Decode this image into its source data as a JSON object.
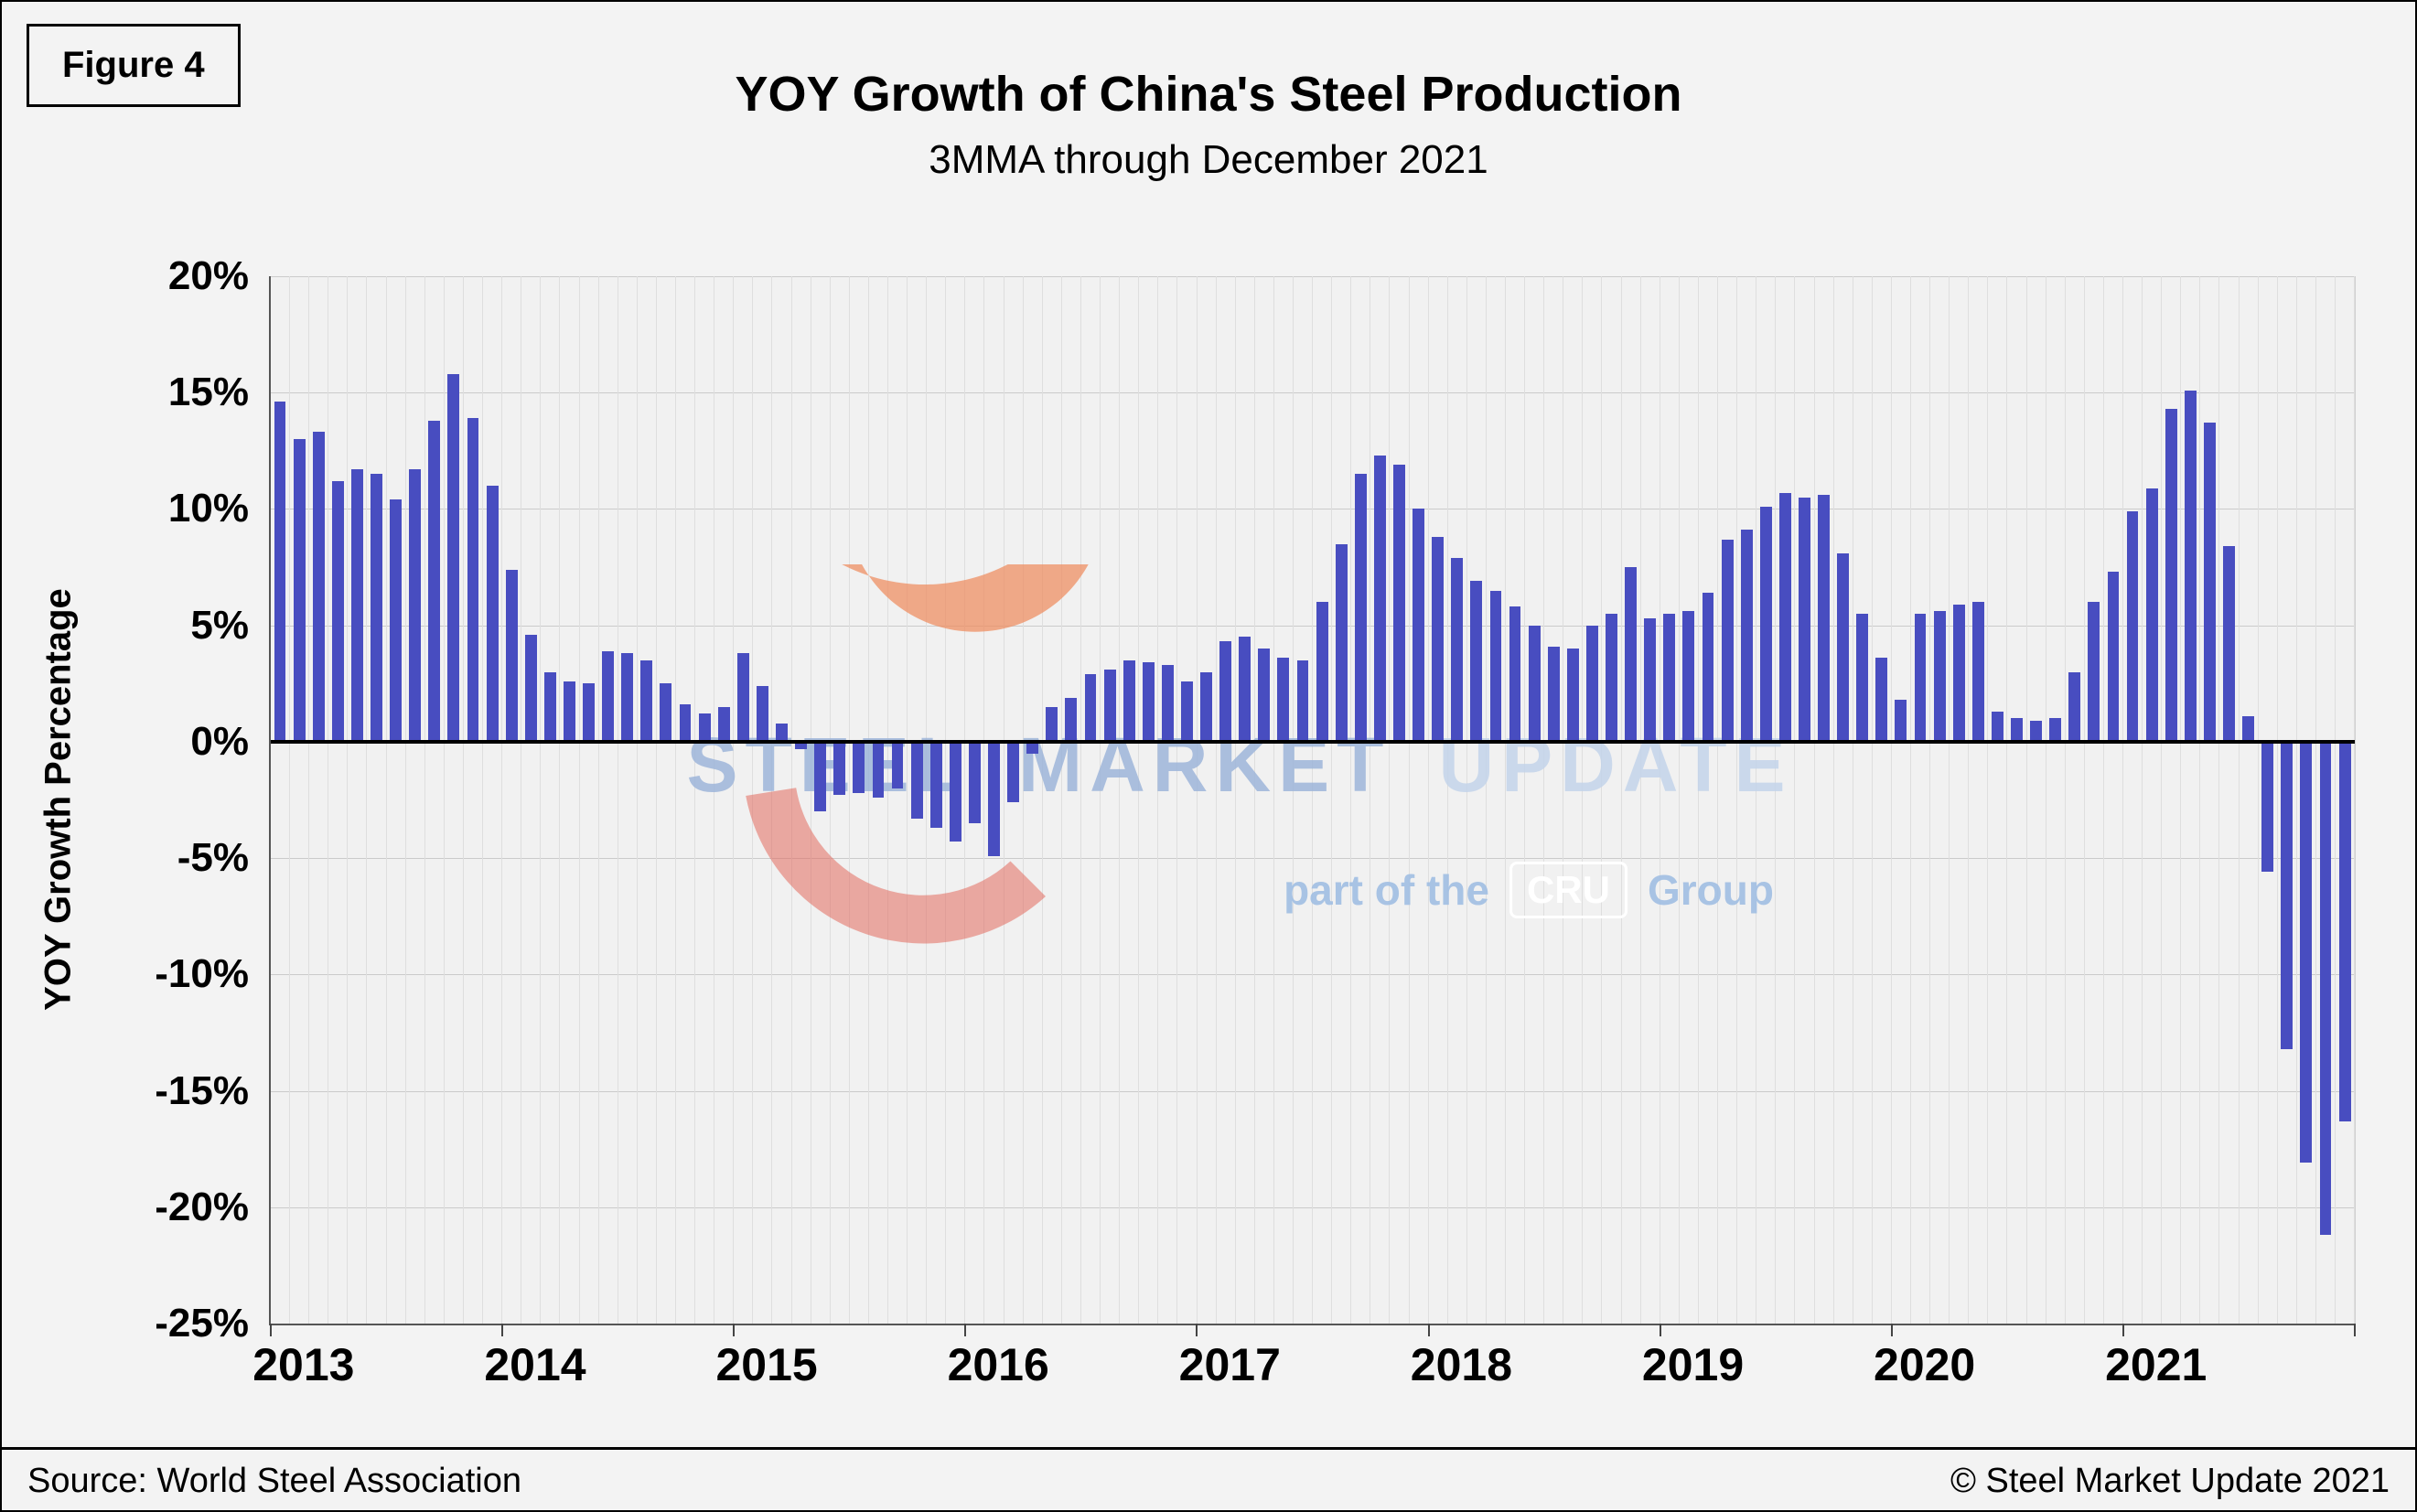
{
  "figure_label": "Figure 4",
  "footer": {
    "source": "Source: World Steel Association",
    "copyright": "© Steel Market Update 2021"
  },
  "watermark": {
    "word1": "STEEL",
    "word2": "MARKET",
    "word3": "UPDATE",
    "part_prefix": "part of the",
    "cru": "CRU",
    "group": "Group"
  },
  "colors": {
    "bar": "#484DC0",
    "zero_line": "#000000",
    "gridline": "#cbcbcb",
    "plot_bg": "#f1f1f1",
    "page_bg": "#f3f3f3",
    "watermark_text": "#98b1d8",
    "watermark_crescent": "#EF8C5F",
    "cru_box_bg": "#7FA6DC"
  },
  "chart_data": {
    "type": "bar",
    "title": "YOY Growth of China's Steel Production",
    "subtitle": "3MMA through December 2021",
    "ylabel": "YOY Growth Percentage",
    "unit": "percent",
    "ylim": [
      -25,
      20
    ],
    "yticks": [
      20,
      15,
      10,
      5,
      0,
      -5,
      -10,
      -15,
      -20,
      -25
    ],
    "ytick_labels": [
      "20%",
      "15%",
      "10%",
      "5%",
      "0%",
      "-5%",
      "-10%",
      "-15%",
      "-20%",
      "-25%"
    ],
    "x_years": [
      "2013",
      "2014",
      "2015",
      "2016",
      "2017",
      "2018",
      "2019",
      "2020",
      "2021"
    ],
    "months_per_year": 12,
    "frequency": "monthly",
    "x_start": "2013-01",
    "x_end": "2021-12",
    "grid": true,
    "legend": "none",
    "series": [
      {
        "name": "China steel production YOY growth, 3-month moving average (%)",
        "values": [
          14.6,
          13.0,
          13.3,
          11.2,
          11.7,
          11.5,
          10.4,
          11.7,
          13.8,
          15.8,
          13.9,
          11.0,
          7.4,
          4.6,
          3.0,
          2.6,
          2.5,
          3.9,
          3.8,
          3.5,
          2.5,
          1.6,
          1.2,
          1.5,
          3.8,
          2.4,
          0.8,
          -0.3,
          -3.0,
          -2.3,
          -2.2,
          -2.4,
          -2.0,
          -3.3,
          -3.7,
          -4.3,
          -3.5,
          -4.9,
          -2.6,
          -0.5,
          1.5,
          1.9,
          2.9,
          3.1,
          3.5,
          3.4,
          3.3,
          2.6,
          3.0,
          4.3,
          4.5,
          4.0,
          3.6,
          3.5,
          6.0,
          8.5,
          11.5,
          12.3,
          11.9,
          10.0,
          8.8,
          7.9,
          6.9,
          6.5,
          5.8,
          5.0,
          4.1,
          4.0,
          5.0,
          5.5,
          7.5,
          5.3,
          5.5,
          5.6,
          6.4,
          8.7,
          9.1,
          10.1,
          10.7,
          10.5,
          10.6,
          8.1,
          5.5,
          3.6,
          1.8,
          5.5,
          5.6,
          5.9,
          6.0,
          1.3,
          1.0,
          0.9,
          1.0,
          3.0,
          6.0,
          7.3,
          9.9,
          10.9,
          14.3,
          15.1,
          13.7,
          8.4,
          1.1,
          -5.6,
          -13.2,
          -18.1,
          -21.2,
          -16.3
        ]
      }
    ]
  }
}
